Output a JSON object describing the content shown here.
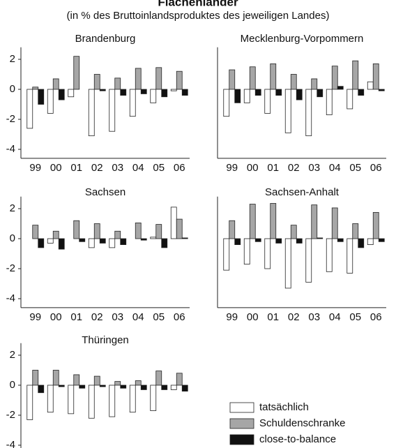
{
  "title": "Flächenländer",
  "subtitle": "(in % des Bruttoinlandsproduktes des jeweiligen Landes)",
  "chart_data": [
    {
      "type": "bar",
      "title": "Brandenburg",
      "categories": [
        "99",
        "00",
        "01",
        "02",
        "03",
        "04",
        "05",
        "06"
      ],
      "series": [
        {
          "name": "tatsächlich",
          "color": "#ffffff",
          "values": [
            -2.6,
            -1.6,
            -0.5,
            -3.1,
            -2.8,
            -1.8,
            -0.9,
            -0.1
          ]
        },
        {
          "name": "Schuldenschranke",
          "color": "#a6a6a6",
          "values": [
            0.15,
            0.7,
            2.2,
            1.0,
            0.75,
            1.4,
            1.45,
            1.2
          ]
        },
        {
          "name": "close-to-balance",
          "color": "#111111",
          "values": [
            -1.0,
            -0.7,
            0.0,
            -0.1,
            -0.4,
            -0.3,
            -0.5,
            -0.4
          ]
        }
      ],
      "ylim": [
        -4.6,
        2.8
      ],
      "yticks": [
        2,
        0,
        -2,
        -4
      ]
    },
    {
      "type": "bar",
      "title": "Mecklenburg-Vorpommern",
      "categories": [
        "99",
        "00",
        "01",
        "02",
        "03",
        "04",
        "05",
        "06"
      ],
      "series": [
        {
          "name": "tatsächlich",
          "color": "#ffffff",
          "values": [
            -1.8,
            -0.9,
            -1.6,
            -2.9,
            -3.1,
            -1.7,
            -1.3,
            0.5
          ]
        },
        {
          "name": "Schuldenschranke",
          "color": "#a6a6a6",
          "values": [
            1.3,
            1.5,
            1.7,
            1.0,
            0.7,
            1.55,
            1.9,
            1.7
          ]
        },
        {
          "name": "close-to-balance",
          "color": "#111111",
          "values": [
            -0.9,
            -0.4,
            -0.4,
            -0.7,
            -0.5,
            0.2,
            -0.4,
            -0.1
          ]
        }
      ],
      "ylim": [
        -4.6,
        2.8
      ]
    },
    {
      "type": "bar",
      "title": "Sachsen",
      "categories": [
        "99",
        "00",
        "01",
        "02",
        "03",
        "04",
        "05",
        "06"
      ],
      "series": [
        {
          "name": "tatsächlich",
          "color": "#ffffff",
          "values": [
            0.0,
            -0.3,
            0.0,
            -0.6,
            -0.6,
            0.0,
            0.1,
            2.1
          ]
        },
        {
          "name": "Schuldenschranke",
          "color": "#a6a6a6",
          "values": [
            0.9,
            0.5,
            1.2,
            1.0,
            0.5,
            1.05,
            0.95,
            1.3
          ]
        },
        {
          "name": "close-to-balance",
          "color": "#111111",
          "values": [
            -0.6,
            -0.7,
            -0.2,
            -0.3,
            -0.4,
            -0.1,
            -0.6,
            0.05
          ]
        }
      ],
      "ylim": [
        -4.6,
        2.8
      ],
      "yticks": [
        2,
        0,
        -2,
        -4
      ]
    },
    {
      "type": "bar",
      "title": "Sachsen-Anhalt",
      "categories": [
        "99",
        "00",
        "01",
        "02",
        "03",
        "04",
        "05",
        "06"
      ],
      "series": [
        {
          "name": "tatsächlich",
          "color": "#ffffff",
          "values": [
            -2.1,
            -1.7,
            -2.0,
            -3.3,
            -2.9,
            -2.2,
            -2.3,
            -0.4
          ]
        },
        {
          "name": "Schuldenschranke",
          "color": "#a6a6a6",
          "values": [
            1.2,
            2.3,
            2.35,
            0.9,
            2.25,
            2.05,
            1.0,
            1.75
          ]
        },
        {
          "name": "close-to-balance",
          "color": "#111111",
          "values": [
            -0.4,
            -0.2,
            -0.3,
            -0.3,
            0.05,
            -0.2,
            -0.6,
            -0.2
          ]
        }
      ],
      "ylim": [
        -4.6,
        2.8
      ]
    },
    {
      "type": "bar",
      "title": "Thüringen",
      "categories": [
        null,
        null,
        null,
        null,
        null,
        null,
        null,
        null
      ],
      "series": [
        {
          "name": "tatsächlich",
          "color": "#ffffff",
          "values": [
            -2.3,
            -1.8,
            -1.9,
            -2.2,
            -2.1,
            -1.8,
            -1.7,
            -0.3
          ]
        },
        {
          "name": "Schuldenschranke",
          "color": "#a6a6a6",
          "values": [
            1.0,
            1.0,
            0.7,
            0.6,
            0.25,
            0.3,
            0.95,
            0.8
          ]
        },
        {
          "name": "close-to-balance",
          "color": "#111111",
          "values": [
            -0.5,
            -0.1,
            -0.2,
            -0.1,
            -0.2,
            -0.3,
            -0.3,
            -0.4
          ]
        }
      ],
      "ylim": [
        -4.6,
        2.8
      ],
      "yticks": [
        2,
        0,
        -2,
        -4
      ]
    }
  ]
}
